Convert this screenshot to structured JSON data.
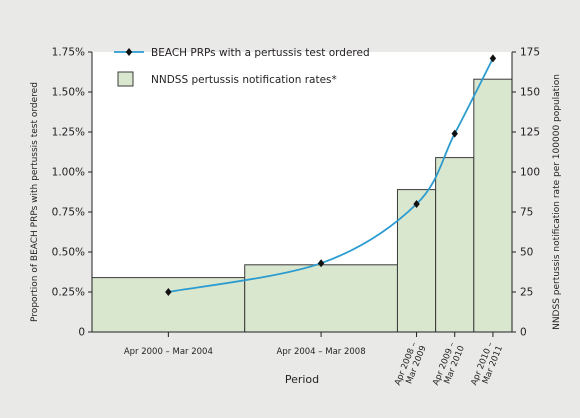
{
  "chart_data": {
    "type": "bar",
    "title": "",
    "xlabel": "Period",
    "ylabel_left": "Proportion of BEACH PRPs with pertussis test ordered",
    "ylabel_right": "NNDSS pertussis notification rate per 100000 population",
    "categories": [
      [
        "Apr 2000 – Mar 2004"
      ],
      [
        "Apr 2004 – Mar 2008"
      ],
      [
        "Apr 2008 –",
        "Mar 2009"
      ],
      [
        "Apr 2009 –",
        "Mar 2010"
      ],
      [
        "Apr 2010 –",
        "Mar 2011"
      ]
    ],
    "period_years": [
      4,
      4,
      1,
      1,
      1
    ],
    "left_axis": {
      "ylim": [
        0,
        1.75
      ],
      "ticks": [
        "0",
        "0.25%",
        "0.50%",
        "0.75%",
        "1.00%",
        "1.25%",
        "1.50%",
        "1.75%"
      ]
    },
    "right_axis": {
      "ylim": [
        0,
        175
      ],
      "ticks": [
        "0",
        "25",
        "50",
        "75",
        "100",
        "125",
        "150",
        "175"
      ]
    },
    "series": [
      {
        "name": "BEACH PRPs with a pertussis test ordered",
        "type": "line",
        "axis": "left",
        "unit": "%",
        "values": [
          0.25,
          0.43,
          0.8,
          1.24,
          1.71
        ],
        "color": "#2b9bd0"
      },
      {
        "name": "NNDSS pertussis notification rates*",
        "type": "bar",
        "axis": "right",
        "unit": "per 100000 population",
        "values": [
          34,
          42,
          89,
          109,
          158
        ],
        "color": "#dae7cf"
      }
    ],
    "grid": false,
    "legend": "top-left"
  },
  "colors": {
    "background": "#e9e9e8",
    "plot_area": "#ffffff",
    "bar_fill": "#dae7cf",
    "bar_stroke": "#3a3a3a",
    "line": "#2b9bd0",
    "marker": "#111111"
  }
}
